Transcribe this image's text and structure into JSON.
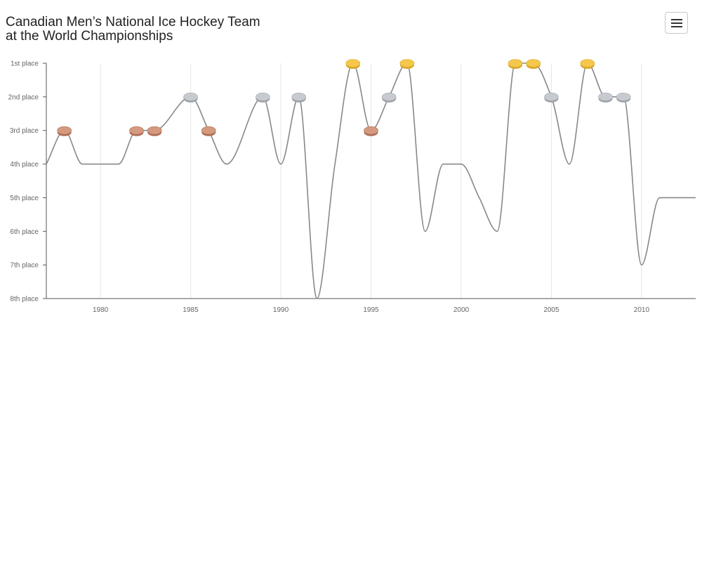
{
  "header": {
    "title_line1": "Canadian Men’s National Ice Hockey Team",
    "title_line2": "at the World Championships",
    "menu_icon": "hamburger-menu-icon"
  },
  "chart_data": {
    "type": "line",
    "title": "Canadian Men’s National Ice Hockey Team at the World Championships",
    "xlabel": "",
    "ylabel": "",
    "xlim": [
      1977,
      2013
    ],
    "ylim": [
      1,
      8
    ],
    "y_reversed": true,
    "grid": "vertical",
    "x_ticks": [
      1980,
      1985,
      1990,
      1995,
      2000,
      2005,
      2010
    ],
    "y_ticks": [
      {
        "value": 1,
        "label": "1st place"
      },
      {
        "value": 2,
        "label": "2nd place"
      },
      {
        "value": 3,
        "label": "3rd place"
      },
      {
        "value": 4,
        "label": "4th place"
      },
      {
        "value": 5,
        "label": "5th place"
      },
      {
        "value": 6,
        "label": "6th place"
      },
      {
        "value": 7,
        "label": "7th place"
      },
      {
        "value": 8,
        "label": "8th place"
      }
    ],
    "line_color": "#888888",
    "medal_colors": {
      "gold": "#f5c84c",
      "silver": "#c7cbd0",
      "bronze": "#d49a80"
    },
    "points": [
      {
        "year": 1977,
        "place": 4
      },
      {
        "year": 1978,
        "place": 3,
        "medal": "bronze"
      },
      {
        "year": 1979,
        "place": 4
      },
      {
        "year": 1981,
        "place": 4
      },
      {
        "year": 1982,
        "place": 3,
        "medal": "bronze"
      },
      {
        "year": 1983,
        "place": 3,
        "medal": "bronze"
      },
      {
        "year": 1985,
        "place": 2,
        "medal": "silver"
      },
      {
        "year": 1986,
        "place": 3,
        "medal": "bronze"
      },
      {
        "year": 1987,
        "place": 4
      },
      {
        "year": 1989,
        "place": 2,
        "medal": "silver"
      },
      {
        "year": 1990,
        "place": 4
      },
      {
        "year": 1991,
        "place": 2,
        "medal": "silver"
      },
      {
        "year": 1992,
        "place": 8
      },
      {
        "year": 1993,
        "place": 4
      },
      {
        "year": 1994,
        "place": 1,
        "medal": "gold"
      },
      {
        "year": 1995,
        "place": 3,
        "medal": "bronze"
      },
      {
        "year": 1996,
        "place": 2,
        "medal": "silver"
      },
      {
        "year": 1997,
        "place": 1,
        "medal": "gold"
      },
      {
        "year": 1998,
        "place": 6
      },
      {
        "year": 1999,
        "place": 4
      },
      {
        "year": 2000,
        "place": 4
      },
      {
        "year": 2001,
        "place": 5
      },
      {
        "year": 2002,
        "place": 6
      },
      {
        "year": 2003,
        "place": 1,
        "medal": "gold"
      },
      {
        "year": 2004,
        "place": 1,
        "medal": "gold"
      },
      {
        "year": 2005,
        "place": 2,
        "medal": "silver"
      },
      {
        "year": 2006,
        "place": 4
      },
      {
        "year": 2007,
        "place": 1,
        "medal": "gold"
      },
      {
        "year": 2008,
        "place": 2,
        "medal": "silver"
      },
      {
        "year": 2009,
        "place": 2,
        "medal": "silver"
      },
      {
        "year": 2010,
        "place": 7
      },
      {
        "year": 2011,
        "place": 5
      },
      {
        "year": 2012,
        "place": 5
      },
      {
        "year": 2013,
        "place": 5
      }
    ]
  }
}
